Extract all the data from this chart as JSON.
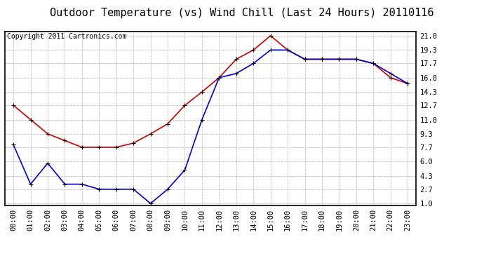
{
  "title": "Outdoor Temperature (vs) Wind Chill (Last 24 Hours) 20110116",
  "copyright_text": "Copyright 2011 Cartronics.com",
  "x_labels": [
    "00:00",
    "01:00",
    "02:00",
    "03:00",
    "04:00",
    "05:00",
    "06:00",
    "07:00",
    "08:00",
    "09:00",
    "10:00",
    "11:00",
    "12:00",
    "13:00",
    "14:00",
    "15:00",
    "16:00",
    "17:00",
    "18:00",
    "19:00",
    "20:00",
    "21:00",
    "22:00",
    "23:00"
  ],
  "temp_values": [
    12.7,
    11.0,
    9.3,
    8.5,
    7.7,
    7.7,
    7.7,
    8.2,
    9.3,
    10.5,
    12.7,
    14.3,
    16.0,
    18.2,
    19.3,
    21.0,
    19.3,
    18.2,
    18.2,
    18.2,
    18.2,
    17.7,
    16.0,
    15.3
  ],
  "wind_chill_values": [
    8.0,
    3.3,
    5.8,
    3.3,
    3.3,
    2.7,
    2.7,
    2.7,
    1.0,
    2.7,
    5.0,
    11.0,
    16.0,
    16.5,
    17.7,
    19.3,
    19.3,
    18.2,
    18.2,
    18.2,
    18.2,
    17.7,
    16.5,
    15.3
  ],
  "y_ticks": [
    1.0,
    2.7,
    4.3,
    6.0,
    7.7,
    9.3,
    11.0,
    12.7,
    14.3,
    16.0,
    17.7,
    19.3,
    21.0
  ],
  "y_min": 0.8,
  "y_max": 21.5,
  "temp_color": "#cc0000",
  "wind_chill_color": "#0000cc",
  "grid_color": "#c0c0c0",
  "bg_color": "#ffffff",
  "title_fontsize": 11,
  "copyright_fontsize": 7,
  "tick_fontsize": 7.5,
  "marker_size": 5,
  "line_width": 1.2
}
